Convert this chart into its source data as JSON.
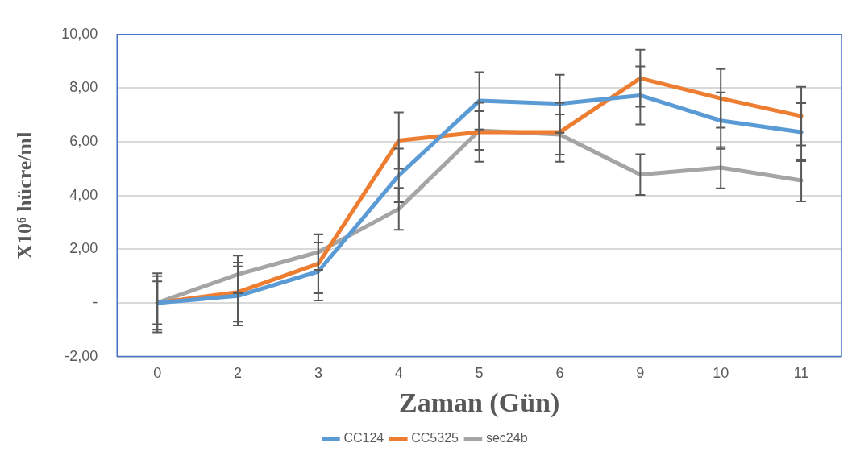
{
  "chart_data": {
    "type": "line",
    "xlabel": "Zaman (Gün)",
    "ylabel": "X10⁶ hücre/ml",
    "categories": [
      "0",
      "2",
      "3",
      "4",
      "5",
      "6",
      "9",
      "10",
      "11"
    ],
    "series": [
      {
        "name": "CC124",
        "color": "#5b9bd5",
        "values": [
          0,
          0.26,
          1.17,
          4.75,
          7.53,
          7.42,
          7.73,
          6.79,
          6.36
        ],
        "errors": [
          0.8,
          1.1,
          1.08,
          1.0,
          1.07,
          1.08,
          1.08,
          1.05,
          1.08
        ]
      },
      {
        "name": "CC5325",
        "color": "#ed7d31",
        "values": [
          0,
          0.4,
          1.46,
          6.05,
          6.36,
          6.36,
          8.37,
          7.62,
          6.96
        ],
        "errors": [
          1.1,
          1.1,
          1.1,
          1.05,
          1.1,
          1.1,
          1.06,
          1.09,
          1.09
        ]
      },
      {
        "name": "sec24b",
        "color": "#a5a5a5",
        "values": [
          0,
          1.06,
          1.89,
          3.5,
          6.42,
          6.27,
          4.78,
          5.04,
          4.56
        ],
        "errors": [
          1.0,
          0.7,
          0.66,
          0.78,
          0.72,
          0.75,
          0.76,
          0.77,
          0.78
        ]
      }
    ],
    "ylim": [
      -2,
      10
    ],
    "yticks": [
      {
        "value": -2,
        "label": "-2,00"
      },
      {
        "value": 0,
        "label": "-"
      },
      {
        "value": 2,
        "label": "2,00"
      },
      {
        "value": 4,
        "label": "4,00"
      },
      {
        "value": 6,
        "label": "6,00"
      },
      {
        "value": 8,
        "label": "8,00"
      },
      {
        "value": 10,
        "label": "10,00"
      }
    ],
    "grid": "y",
    "legend": "bottom",
    "marker": "none",
    "line_style": "solid"
  }
}
